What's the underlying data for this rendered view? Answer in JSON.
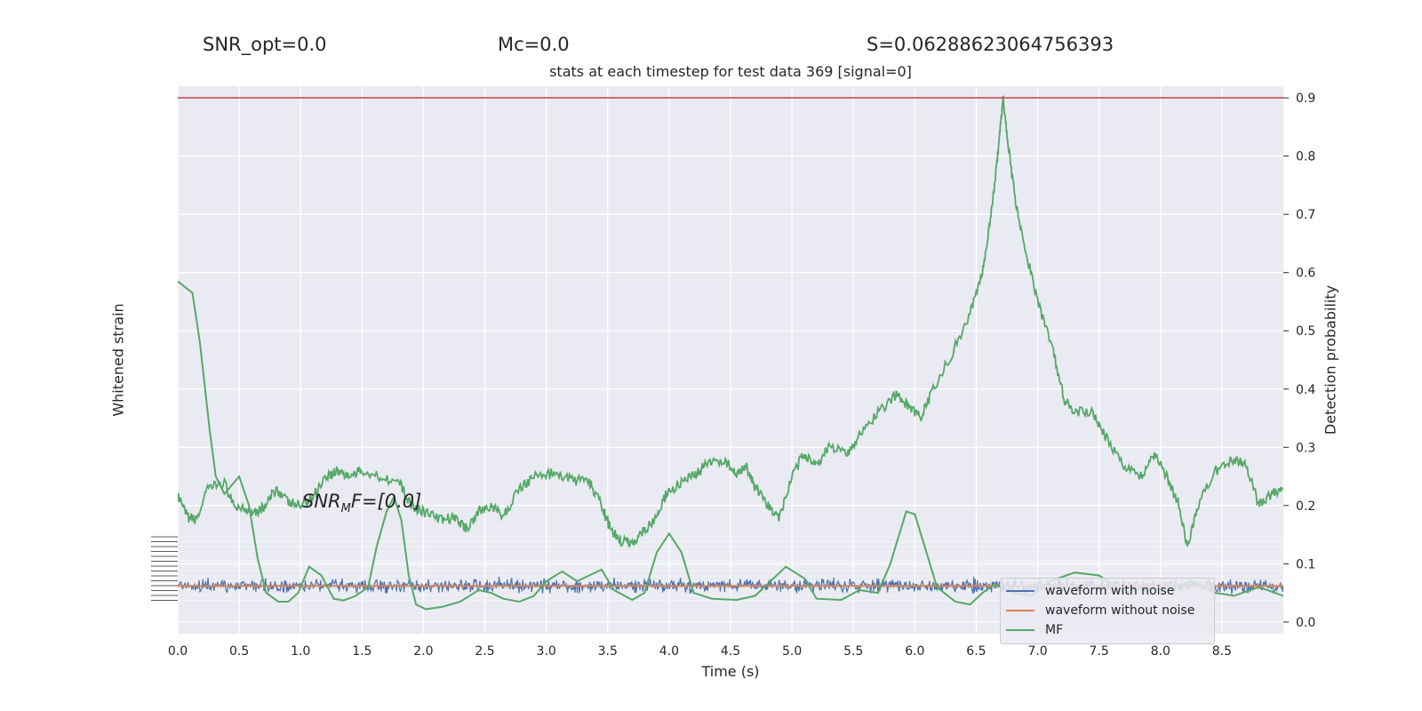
{
  "stats": {
    "snr_opt": "SNR_opt=0.0",
    "mc": "Mc=0.0",
    "s": "S=0.06288623064756393"
  },
  "snr_mf": {
    "prefix": "SNR",
    "sub": "M",
    "suffix": "F=[0.0]"
  },
  "chart_data": {
    "type": "line",
    "title": "stats at each timestep for test data 369 [signal=0]",
    "xlabel": "Time (s)",
    "ylabel_left": "Whitened strain",
    "ylabel_right": "Detection probability",
    "xlim": [
      0.0,
      9.0
    ],
    "ylim_right": [
      -0.02,
      0.92
    ],
    "x_ticks": [
      "0.0",
      "0.5",
      "1.0",
      "1.5",
      "2.0",
      "2.5",
      "3.0",
      "3.5",
      "4.0",
      "4.5",
      "5.0",
      "5.5",
      "6.0",
      "6.5",
      "7.0",
      "7.5",
      "8.0",
      "8.5"
    ],
    "y_right_ticks": [
      "0.0",
      "0.1",
      "0.2",
      "0.3",
      "0.4",
      "0.5",
      "0.6",
      "0.7",
      "0.8",
      "0.9"
    ],
    "threshold": 0.9,
    "grid": true,
    "legend_position": "bottom-right",
    "colors": {
      "waveform_with_noise": "#4c72b0",
      "waveform_without_noise": "#dd8452",
      "mf": "#55a868",
      "threshold": "#c44e52",
      "background": "#eaeaf2"
    },
    "series": [
      {
        "name": "waveform with noise",
        "type": "noise",
        "center": 0.062,
        "amplitude": 0.013
      },
      {
        "name": "waveform without noise",
        "type": "flat",
        "value": 0.062
      },
      {
        "name": "MF",
        "points": [
          [
            0.0,
            0.585
          ],
          [
            0.12,
            0.565
          ],
          [
            0.18,
            0.48
          ],
          [
            0.26,
            0.33
          ],
          [
            0.31,
            0.25
          ],
          [
            0.38,
            0.22
          ],
          [
            0.5,
            0.25
          ],
          [
            0.58,
            0.2
          ],
          [
            0.65,
            0.11
          ],
          [
            0.72,
            0.05
          ],
          [
            0.82,
            0.035
          ],
          [
            0.9,
            0.035
          ],
          [
            0.98,
            0.05
          ],
          [
            1.07,
            0.095
          ],
          [
            1.17,
            0.08
          ],
          [
            1.27,
            0.04
          ],
          [
            1.35,
            0.037
          ],
          [
            1.45,
            0.045
          ],
          [
            1.55,
            0.06
          ],
          [
            1.62,
            0.13
          ],
          [
            1.7,
            0.19
          ],
          [
            1.76,
            0.215
          ],
          [
            1.82,
            0.175
          ],
          [
            1.88,
            0.08
          ],
          [
            1.94,
            0.03
          ],
          [
            2.02,
            0.022
          ],
          [
            2.15,
            0.026
          ],
          [
            2.3,
            0.035
          ],
          [
            2.45,
            0.055
          ],
          [
            2.55,
            0.05
          ],
          [
            2.65,
            0.04
          ],
          [
            2.78,
            0.035
          ],
          [
            2.9,
            0.045
          ],
          [
            3.0,
            0.07
          ],
          [
            3.13,
            0.087
          ],
          [
            3.25,
            0.07
          ],
          [
            3.35,
            0.08
          ],
          [
            3.45,
            0.09
          ],
          [
            3.55,
            0.055
          ],
          [
            3.7,
            0.038
          ],
          [
            3.8,
            0.05
          ],
          [
            3.9,
            0.12
          ],
          [
            4.0,
            0.152
          ],
          [
            4.1,
            0.12
          ],
          [
            4.2,
            0.05
          ],
          [
            4.35,
            0.04
          ],
          [
            4.55,
            0.038
          ],
          [
            4.7,
            0.045
          ],
          [
            4.8,
            0.065
          ],
          [
            4.95,
            0.095
          ],
          [
            5.1,
            0.075
          ],
          [
            5.2,
            0.04
          ],
          [
            5.4,
            0.038
          ],
          [
            5.55,
            0.055
          ],
          [
            5.7,
            0.05
          ],
          [
            5.8,
            0.1
          ],
          [
            5.93,
            0.19
          ],
          [
            6.0,
            0.185
          ],
          [
            6.08,
            0.13
          ],
          [
            6.18,
            0.06
          ],
          [
            6.33,
            0.035
          ],
          [
            6.45,
            0.03
          ],
          [
            6.55,
            0.05
          ],
          [
            6.65,
            0.065
          ],
          [
            6.8,
            0.05
          ],
          [
            6.95,
            0.045
          ],
          [
            7.1,
            0.07
          ],
          [
            7.3,
            0.085
          ],
          [
            7.5,
            0.08
          ],
          [
            7.7,
            0.05
          ],
          [
            7.9,
            0.06
          ],
          [
            8.05,
            0.055
          ],
          [
            8.25,
            0.07
          ],
          [
            8.45,
            0.05
          ],
          [
            8.6,
            0.045
          ],
          [
            8.8,
            0.06
          ],
          [
            9.0,
            0.045
          ]
        ]
      },
      {
        "name": "detection probability",
        "points": [
          [
            0.0,
            0.215
          ],
          [
            0.08,
            0.18
          ],
          [
            0.15,
            0.175
          ],
          [
            0.25,
            0.23
          ],
          [
            0.38,
            0.24
          ],
          [
            0.45,
            0.2
          ],
          [
            0.55,
            0.195
          ],
          [
            0.65,
            0.19
          ],
          [
            0.72,
            0.2
          ],
          [
            0.8,
            0.23
          ],
          [
            0.9,
            0.205
          ],
          [
            1.0,
            0.2
          ],
          [
            1.1,
            0.215
          ],
          [
            1.2,
            0.25
          ],
          [
            1.3,
            0.26
          ],
          [
            1.4,
            0.25
          ],
          [
            1.5,
            0.26
          ],
          [
            1.65,
            0.25
          ],
          [
            1.8,
            0.24
          ],
          [
            1.9,
            0.2
          ],
          [
            2.0,
            0.19
          ],
          [
            2.15,
            0.175
          ],
          [
            2.25,
            0.18
          ],
          [
            2.35,
            0.16
          ],
          [
            2.45,
            0.19
          ],
          [
            2.55,
            0.2
          ],
          [
            2.65,
            0.18
          ],
          [
            2.78,
            0.23
          ],
          [
            2.9,
            0.25
          ],
          [
            3.05,
            0.255
          ],
          [
            3.2,
            0.245
          ],
          [
            3.35,
            0.24
          ],
          [
            3.45,
            0.2
          ],
          [
            3.52,
            0.16
          ],
          [
            3.6,
            0.14
          ],
          [
            3.7,
            0.135
          ],
          [
            3.78,
            0.155
          ],
          [
            3.88,
            0.175
          ],
          [
            3.98,
            0.22
          ],
          [
            4.1,
            0.24
          ],
          [
            4.2,
            0.25
          ],
          [
            4.3,
            0.27
          ],
          [
            4.45,
            0.28
          ],
          [
            4.55,
            0.25
          ],
          [
            4.62,
            0.27
          ],
          [
            4.7,
            0.23
          ],
          [
            4.8,
            0.2
          ],
          [
            4.9,
            0.18
          ],
          [
            5.0,
            0.25
          ],
          [
            5.1,
            0.29
          ],
          [
            5.2,
            0.27
          ],
          [
            5.3,
            0.3
          ],
          [
            5.45,
            0.29
          ],
          [
            5.55,
            0.32
          ],
          [
            5.7,
            0.36
          ],
          [
            5.85,
            0.39
          ],
          [
            5.95,
            0.37
          ],
          [
            6.05,
            0.35
          ],
          [
            6.15,
            0.4
          ],
          [
            6.3,
            0.46
          ],
          [
            6.45,
            0.53
          ],
          [
            6.55,
            0.6
          ],
          [
            6.62,
            0.7
          ],
          [
            6.67,
            0.79
          ],
          [
            6.7,
            0.86
          ],
          [
            6.72,
            0.9
          ],
          [
            6.76,
            0.82
          ],
          [
            6.82,
            0.72
          ],
          [
            6.9,
            0.64
          ],
          [
            7.0,
            0.55
          ],
          [
            7.12,
            0.47
          ],
          [
            7.22,
            0.38
          ],
          [
            7.3,
            0.36
          ],
          [
            7.45,
            0.36
          ],
          [
            7.55,
            0.32
          ],
          [
            7.7,
            0.27
          ],
          [
            7.85,
            0.25
          ],
          [
            7.95,
            0.29
          ],
          [
            8.05,
            0.25
          ],
          [
            8.15,
            0.2
          ],
          [
            8.22,
            0.125
          ],
          [
            8.3,
            0.2
          ],
          [
            8.45,
            0.26
          ],
          [
            8.6,
            0.28
          ],
          [
            8.7,
            0.27
          ],
          [
            8.8,
            0.2
          ],
          [
            8.9,
            0.22
          ],
          [
            9.0,
            0.23
          ]
        ]
      }
    ]
  }
}
